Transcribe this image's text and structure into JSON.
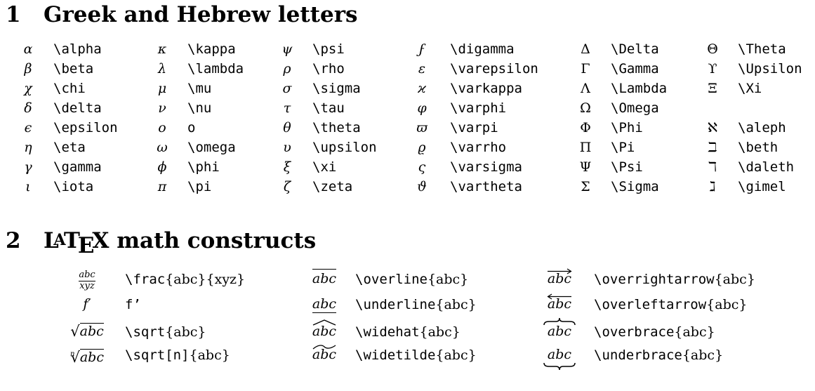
{
  "section1": {
    "number": "1",
    "title": "Greek and Hebrew letters",
    "columns": [
      [
        {
          "sym": "α",
          "cmd": "\\alpha"
        },
        {
          "sym": "β",
          "cmd": "\\beta"
        },
        {
          "sym": "χ",
          "cmd": "\\chi"
        },
        {
          "sym": "δ",
          "cmd": "\\delta"
        },
        {
          "sym": "ϵ",
          "cmd": "\\epsilon"
        },
        {
          "sym": "η",
          "cmd": "\\eta"
        },
        {
          "sym": "γ",
          "cmd": "\\gamma"
        },
        {
          "sym": "ι",
          "cmd": "\\iota"
        }
      ],
      [
        {
          "sym": "κ",
          "cmd": "\\kappa"
        },
        {
          "sym": "λ",
          "cmd": "\\lambda"
        },
        {
          "sym": "μ",
          "cmd": "\\mu"
        },
        {
          "sym": "ν",
          "cmd": "\\nu"
        },
        {
          "sym": "o",
          "cmd": "o"
        },
        {
          "sym": "ω",
          "cmd": "\\omega"
        },
        {
          "sym": "ϕ",
          "cmd": "\\phi"
        },
        {
          "sym": "π",
          "cmd": "\\pi"
        }
      ],
      [
        {
          "sym": "ψ",
          "cmd": "\\psi"
        },
        {
          "sym": "ρ",
          "cmd": "\\rho"
        },
        {
          "sym": "σ",
          "cmd": "\\sigma"
        },
        {
          "sym": "τ",
          "cmd": "\\tau"
        },
        {
          "sym": "θ",
          "cmd": "\\theta"
        },
        {
          "sym": "υ",
          "cmd": "\\upsilon"
        },
        {
          "sym": "ξ",
          "cmd": "\\xi"
        },
        {
          "sym": "ζ",
          "cmd": "\\zeta"
        }
      ],
      [
        {
          "sym": "ϝ",
          "cmd": "\\digamma"
        },
        {
          "sym": "ε",
          "cmd": "\\varepsilon"
        },
        {
          "sym": "ϰ",
          "cmd": "\\varkappa"
        },
        {
          "sym": "φ",
          "cmd": "\\varphi"
        },
        {
          "sym": "ϖ",
          "cmd": "\\varpi"
        },
        {
          "sym": "ϱ",
          "cmd": "\\varrho"
        },
        {
          "sym": "ς",
          "cmd": "\\varsigma"
        },
        {
          "sym": "ϑ",
          "cmd": "\\vartheta"
        }
      ],
      [
        {
          "sym": "Δ",
          "cmd": "\\Delta"
        },
        {
          "sym": "Γ",
          "cmd": "\\Gamma"
        },
        {
          "sym": "Λ",
          "cmd": "\\Lambda"
        },
        {
          "sym": "Ω",
          "cmd": "\\Omega"
        },
        {
          "sym": "Φ",
          "cmd": "\\Phi"
        },
        {
          "sym": "Π",
          "cmd": "\\Pi"
        },
        {
          "sym": "Ψ",
          "cmd": "\\Psi"
        },
        {
          "sym": "Σ",
          "cmd": "\\Sigma"
        }
      ],
      [
        {
          "sym": "Θ",
          "cmd": "\\Theta"
        },
        {
          "sym": "ϒ",
          "cmd": "\\Upsilon"
        },
        {
          "sym": "Ξ",
          "cmd": "\\Xi"
        },
        {
          "sym": "",
          "cmd": ""
        },
        {
          "sym": "ℵ",
          "cmd": "\\aleph"
        },
        {
          "sym": "ℶ",
          "cmd": "\\beth"
        },
        {
          "sym": "ℸ",
          "cmd": "\\daleth"
        },
        {
          "sym": "ℷ",
          "cmd": "\\gimel"
        }
      ]
    ]
  },
  "section2": {
    "number": "2",
    "title_logo": "LaTeX",
    "title_rest": " math constructs",
    "constructs": {
      "frac": {
        "num": "abc",
        "den": "xyz",
        "cmd": "\\frac",
        "args": "{abc}{xyz}"
      },
      "prime": {
        "example": "f′",
        "cmd": "f’",
        "args": ""
      },
      "sqrt": {
        "example": "abc",
        "cmd": "\\sqrt",
        "args": "{abc}"
      },
      "sqrtn": {
        "index": "n",
        "example": "abc",
        "cmd": "\\sqrt[n]",
        "args": "{abc}"
      },
      "overline": {
        "example": "abc",
        "cmd": "\\overline",
        "args": "{abc}"
      },
      "underline": {
        "example": "abc",
        "cmd": "\\underline",
        "args": "{abc}"
      },
      "widehat": {
        "example": "abc",
        "cmd": "\\widehat",
        "args": "{abc}"
      },
      "widetilde": {
        "example": "abc",
        "cmd": "\\widetilde",
        "args": "{abc}"
      },
      "overrightarrow": {
        "example": "abc",
        "cmd": "\\overrightarrow",
        "args": "{abc}"
      },
      "overleftarrow": {
        "example": "abc",
        "cmd": "\\overleftarrow",
        "args": "{abc}"
      },
      "overbrace": {
        "example": "abc",
        "cmd": "\\overbrace",
        "args": "{abc}"
      },
      "underbrace": {
        "example": "abc",
        "cmd": "\\underbrace",
        "args": "{abc}"
      }
    }
  }
}
